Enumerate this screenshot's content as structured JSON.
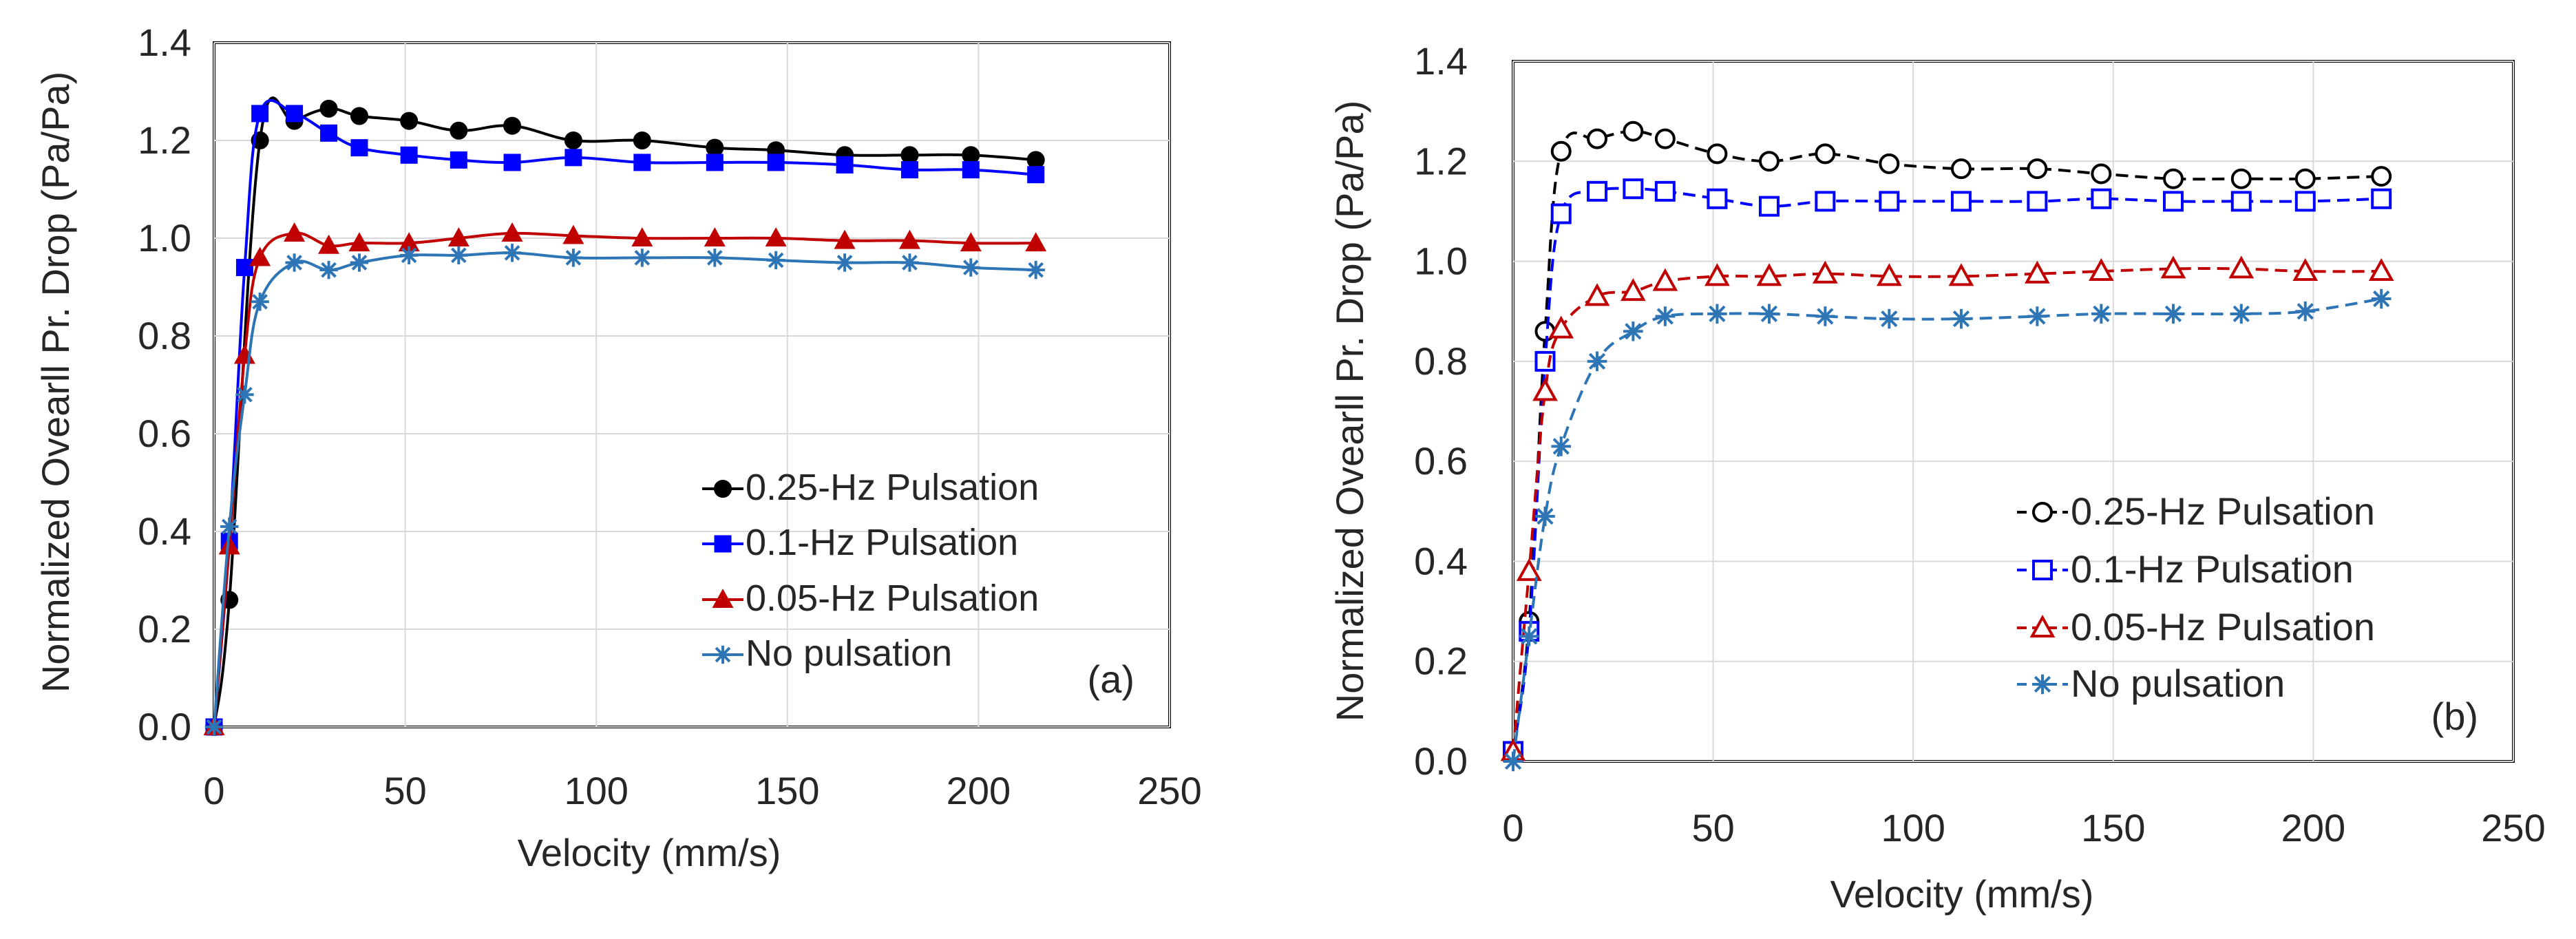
{
  "chart_data": [
    {
      "type": "line",
      "panel_label": "(a)",
      "xlabel": "Velocity (mm/s)",
      "ylabel": "Normalized Ovearll Pr. Drop (Pa/Pa)",
      "xlim": [
        0,
        250
      ],
      "ylim": [
        0,
        1.4
      ],
      "xticks": [
        "0",
        "50",
        "100",
        "150",
        "200",
        "250"
      ],
      "yticks": [
        "0.0",
        "0.2",
        "0.4",
        "0.6",
        "0.8",
        "1.0",
        "1.2",
        "1.4"
      ],
      "grid": true,
      "legend_position": "right",
      "series": [
        {
          "name": "0.25-Hz Pulsation",
          "color": "#000000",
          "marker": "circle-filled",
          "dash": "solid",
          "x": [
            0,
            4,
            12,
            21,
            30,
            38,
            51,
            64,
            78,
            94,
            112,
            131,
            147,
            165,
            182,
            198,
            215
          ],
          "y": [
            0,
            0.26,
            1.2,
            1.24,
            1.265,
            1.25,
            1.24,
            1.22,
            1.23,
            1.2,
            1.2,
            1.185,
            1.18,
            1.17,
            1.17,
            1.17,
            1.16
          ]
        },
        {
          "name": "0.1-Hz Pulsation",
          "color": "#0000ff",
          "marker": "square-filled",
          "dash": "solid",
          "x": [
            0,
            4,
            8,
            12,
            21,
            30,
            38,
            51,
            64,
            78,
            94,
            112,
            131,
            147,
            165,
            182,
            198,
            215
          ],
          "y": [
            0,
            0.38,
            0.94,
            1.255,
            1.255,
            1.215,
            1.185,
            1.17,
            1.16,
            1.155,
            1.165,
            1.155,
            1.155,
            1.155,
            1.15,
            1.14,
            1.14,
            1.13
          ]
        },
        {
          "name": "0.05-Hz Pulsation",
          "color": "#c00000",
          "marker": "triangle-filled",
          "dash": "solid",
          "x": [
            0,
            4,
            8,
            12,
            21,
            30,
            38,
            51,
            64,
            78,
            94,
            112,
            131,
            147,
            165,
            182,
            198,
            215
          ],
          "y": [
            0,
            0.37,
            0.76,
            0.96,
            1.01,
            0.985,
            0.99,
            0.99,
            1.0,
            1.01,
            1.005,
            1.0,
            1.0,
            1.0,
            0.995,
            0.995,
            0.99,
            0.99
          ]
        },
        {
          "name": "No pulsation",
          "color": "#2e75b6",
          "marker": "star",
          "dash": "solid",
          "x": [
            0,
            4,
            8,
            12,
            21,
            30,
            38,
            51,
            64,
            78,
            94,
            112,
            131,
            147,
            165,
            182,
            198,
            215
          ],
          "y": [
            0,
            0.41,
            0.68,
            0.87,
            0.95,
            0.935,
            0.95,
            0.965,
            0.965,
            0.97,
            0.96,
            0.96,
            0.96,
            0.955,
            0.95,
            0.95,
            0.94,
            0.935
          ]
        }
      ]
    },
    {
      "type": "line",
      "panel_label": "(b)",
      "xlabel": "Velocity (mm/s)",
      "ylabel": "Normalized Ovearll Pr. Drop (Pa/Pa)",
      "xlim": [
        0,
        250
      ],
      "ylim": [
        0,
        1.4
      ],
      "xticks": [
        "0",
        "50",
        "100",
        "150",
        "200",
        "250"
      ],
      "yticks": [
        "0.0",
        "0.2",
        "0.4",
        "0.6",
        "0.8",
        "1.0",
        "1.2",
        "1.4"
      ],
      "grid": true,
      "legend_position": "right",
      "series": [
        {
          "name": "0.25-Hz Pulsation",
          "color": "#000000",
          "marker": "circle-open",
          "dash": "dashed",
          "x": [
            0,
            4,
            8,
            12,
            21,
            30,
            38,
            51,
            64,
            78,
            94,
            112,
            131,
            147,
            165,
            182,
            198,
            217
          ],
          "y": [
            0.02,
            0.28,
            0.86,
            1.22,
            1.245,
            1.26,
            1.245,
            1.215,
            1.2,
            1.215,
            1.195,
            1.185,
            1.185,
            1.175,
            1.165,
            1.165,
            1.165,
            1.17
          ]
        },
        {
          "name": "0.1-Hz Pulsation",
          "color": "#0000ff",
          "marker": "square-open",
          "dash": "dashed",
          "x": [
            0,
            4,
            8,
            12,
            21,
            30,
            38,
            51,
            64,
            78,
            94,
            112,
            131,
            147,
            165,
            182,
            198,
            217
          ],
          "y": [
            0.02,
            0.26,
            0.8,
            1.095,
            1.14,
            1.145,
            1.14,
            1.125,
            1.11,
            1.12,
            1.12,
            1.12,
            1.12,
            1.125,
            1.12,
            1.12,
            1.12,
            1.125
          ]
        },
        {
          "name": "0.05-Hz Pulsation",
          "color": "#c00000",
          "marker": "triangle-open",
          "dash": "dashed",
          "x": [
            0,
            4,
            8,
            12,
            21,
            30,
            38,
            51,
            64,
            78,
            94,
            112,
            131,
            147,
            165,
            182,
            198,
            217
          ],
          "y": [
            0.02,
            0.38,
            0.74,
            0.865,
            0.93,
            0.94,
            0.96,
            0.97,
            0.97,
            0.975,
            0.97,
            0.97,
            0.975,
            0.98,
            0.985,
            0.985,
            0.98,
            0.98
          ]
        },
        {
          "name": "No pulsation",
          "color": "#2e75b6",
          "marker": "star",
          "dash": "dashed",
          "x": [
            0,
            4,
            8,
            12,
            21,
            30,
            38,
            51,
            64,
            78,
            94,
            112,
            131,
            147,
            165,
            182,
            198,
            217
          ],
          "y": [
            0.0,
            0.25,
            0.49,
            0.63,
            0.8,
            0.86,
            0.89,
            0.895,
            0.895,
            0.89,
            0.885,
            0.885,
            0.89,
            0.895,
            0.895,
            0.895,
            0.9,
            0.925
          ]
        }
      ]
    }
  ]
}
